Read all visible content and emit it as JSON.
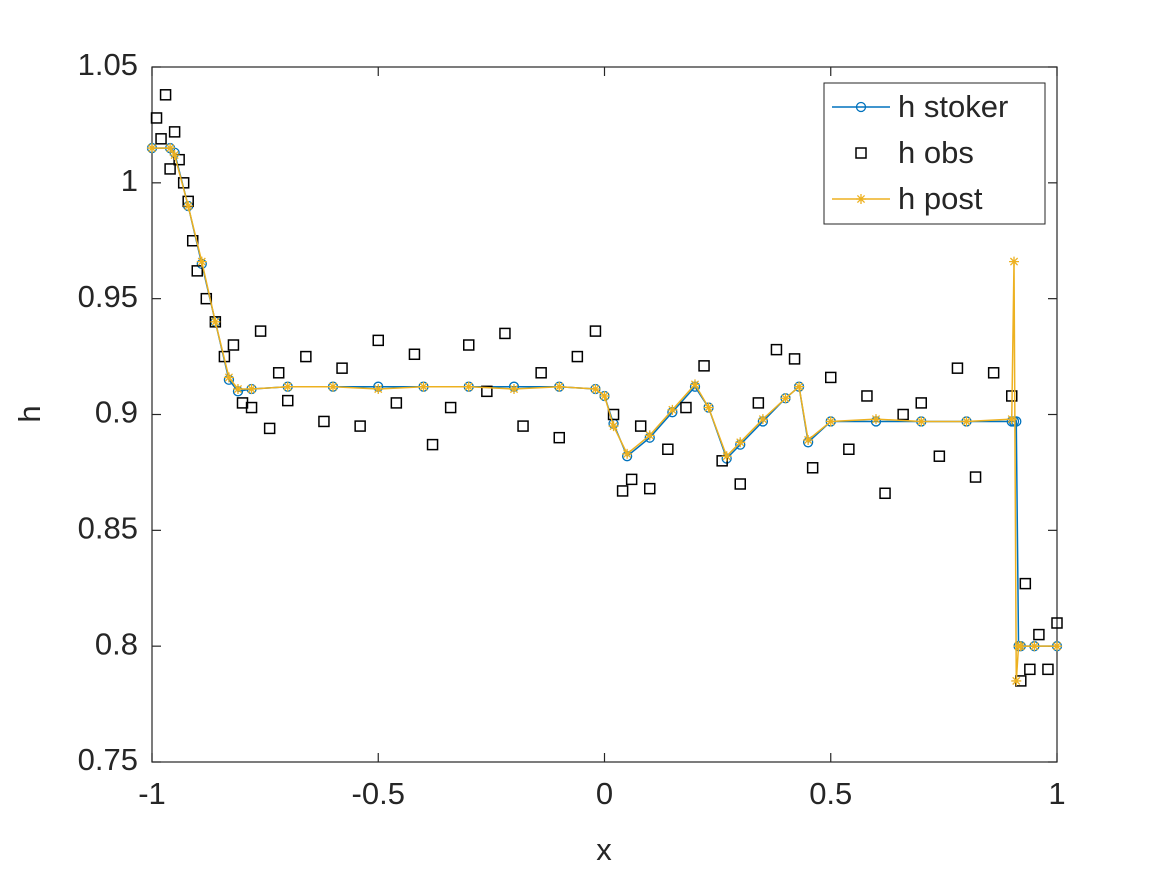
{
  "chart_data": {
    "type": "line",
    "xlabel": "x",
    "ylabel": "h",
    "xlim": [
      -1,
      1
    ],
    "xticks": [
      -1,
      -0.5,
      0,
      0.5,
      1
    ],
    "ylim": [
      0.75,
      1.05
    ],
    "yticks": [
      0.75,
      0.8,
      0.85,
      0.9,
      0.95,
      1,
      1.05
    ],
    "legend": "top-right",
    "series": [
      {
        "name": "h stoker",
        "color": "#0072bd",
        "marker": "o",
        "line": true,
        "x": [
          -1,
          -0.96,
          -0.95,
          -0.92,
          -0.89,
          -0.86,
          -0.83,
          -0.81,
          -0.78,
          -0.7,
          -0.6,
          -0.5,
          -0.4,
          -0.3,
          -0.2,
          -0.1,
          -0.02,
          0.0,
          0.02,
          0.05,
          0.1,
          0.15,
          0.2,
          0.23,
          0.27,
          0.3,
          0.35,
          0.4,
          0.43,
          0.45,
          0.5,
          0.6,
          0.7,
          0.8,
          0.9,
          0.905,
          0.91,
          0.915,
          0.92,
          0.95,
          1.0
        ],
        "values": [
          1.015,
          1.015,
          1.013,
          0.99,
          0.965,
          0.94,
          0.915,
          0.91,
          0.911,
          0.912,
          0.912,
          0.912,
          0.912,
          0.912,
          0.912,
          0.912,
          0.911,
          0.908,
          0.896,
          0.882,
          0.89,
          0.901,
          0.912,
          0.903,
          0.881,
          0.887,
          0.897,
          0.907,
          0.912,
          0.888,
          0.897,
          0.897,
          0.897,
          0.897,
          0.897,
          0.897,
          0.897,
          0.8,
          0.8,
          0.8,
          0.8
        ]
      },
      {
        "name": "h obs",
        "color": "#000000",
        "marker": "s",
        "line": false,
        "x": [
          -0.99,
          -0.98,
          -0.97,
          -0.96,
          -0.95,
          -0.94,
          -0.93,
          -0.92,
          -0.91,
          -0.9,
          -0.88,
          -0.86,
          -0.84,
          -0.82,
          -0.8,
          -0.78,
          -0.76,
          -0.74,
          -0.72,
          -0.7,
          -0.66,
          -0.62,
          -0.58,
          -0.54,
          -0.5,
          -0.46,
          -0.42,
          -0.38,
          -0.34,
          -0.3,
          -0.26,
          -0.22,
          -0.18,
          -0.14,
          -0.1,
          -0.06,
          -0.02,
          0.02,
          0.04,
          0.06,
          0.08,
          0.1,
          0.14,
          0.18,
          0.22,
          0.26,
          0.3,
          0.34,
          0.38,
          0.42,
          0.46,
          0.5,
          0.54,
          0.58,
          0.62,
          0.66,
          0.7,
          0.74,
          0.78,
          0.82,
          0.86,
          0.9,
          0.92,
          0.93,
          0.94,
          0.96,
          0.98,
          1.0
        ],
        "values": [
          1.028,
          1.019,
          1.038,
          1.006,
          1.022,
          1.01,
          1.0,
          0.992,
          0.975,
          0.962,
          0.95,
          0.94,
          0.925,
          0.93,
          0.905,
          0.903,
          0.936,
          0.894,
          0.918,
          0.906,
          0.925,
          0.897,
          0.92,
          0.895,
          0.932,
          0.905,
          0.926,
          0.887,
          0.903,
          0.93,
          0.91,
          0.935,
          0.895,
          0.918,
          0.89,
          0.925,
          0.936,
          0.9,
          0.867,
          0.872,
          0.895,
          0.868,
          0.885,
          0.903,
          0.921,
          0.88,
          0.87,
          0.905,
          0.928,
          0.924,
          0.877,
          0.916,
          0.885,
          0.908,
          0.866,
          0.9,
          0.905,
          0.882,
          0.92,
          0.873,
          0.918,
          0.908,
          0.785,
          0.827,
          0.79,
          0.805,
          0.79,
          0.81
        ]
      },
      {
        "name": "h post",
        "color": "#edb120",
        "marker": "*",
        "line": true,
        "x": [
          -1,
          -0.96,
          -0.95,
          -0.92,
          -0.89,
          -0.86,
          -0.83,
          -0.81,
          -0.78,
          -0.7,
          -0.6,
          -0.5,
          -0.4,
          -0.3,
          -0.2,
          -0.1,
          -0.02,
          0.0,
          0.02,
          0.05,
          0.1,
          0.15,
          0.2,
          0.23,
          0.27,
          0.3,
          0.35,
          0.4,
          0.43,
          0.45,
          0.5,
          0.6,
          0.7,
          0.8,
          0.9,
          0.905,
          0.91,
          0.915,
          0.92,
          0.95,
          1.0
        ],
        "values": [
          1.015,
          1.015,
          1.012,
          0.99,
          0.966,
          0.94,
          0.916,
          0.911,
          0.911,
          0.912,
          0.912,
          0.911,
          0.912,
          0.912,
          0.911,
          0.912,
          0.911,
          0.908,
          0.895,
          0.883,
          0.891,
          0.902,
          0.913,
          0.903,
          0.882,
          0.888,
          0.898,
          0.907,
          0.912,
          0.889,
          0.897,
          0.898,
          0.897,
          0.897,
          0.898,
          0.966,
          0.785,
          0.8,
          0.8,
          0.8,
          0.8
        ]
      }
    ]
  }
}
